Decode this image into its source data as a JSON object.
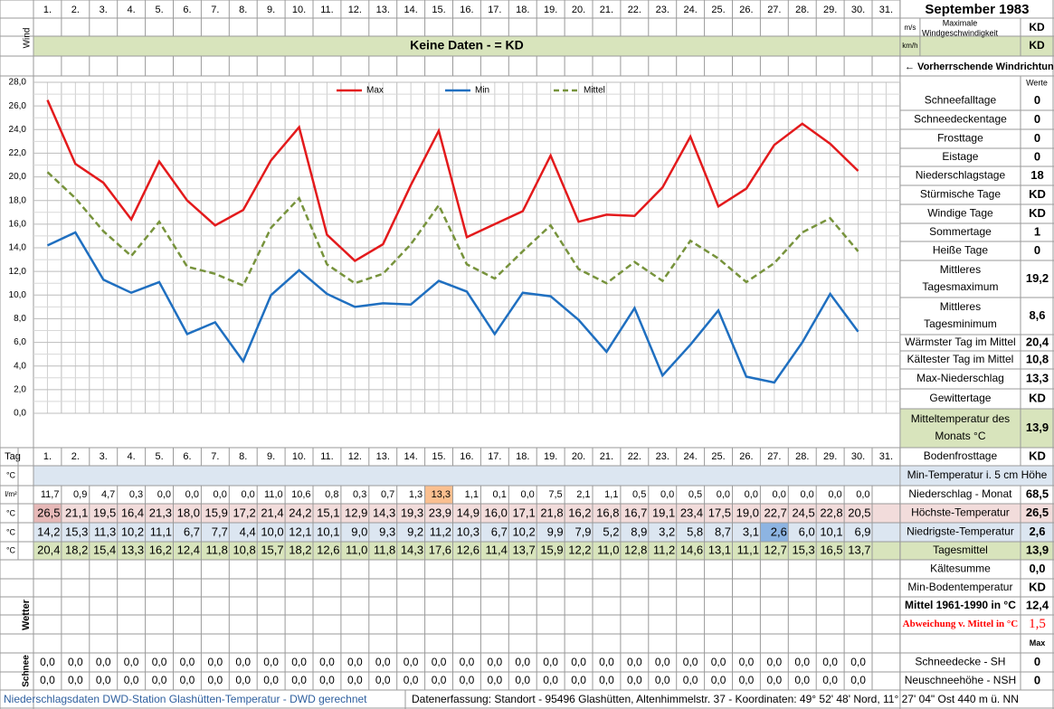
{
  "header": {
    "title": "September 1983",
    "wind_label": "Wind",
    "ms": "m/s",
    "kmh": "km/h",
    "wind_max_label": [
      "Maximale",
      "Windgeschwindigkeit"
    ],
    "wind_ms_value": "KD",
    "wind_kmh_value": "KD",
    "no_data": "Keine Daten -  = KD",
    "wind_direction": "← Vorherrschende Windrichtung"
  },
  "chart_data": {
    "type": "line",
    "categories": [
      "1.",
      "2.",
      "3.",
      "4.",
      "5.",
      "6.",
      "7.",
      "8.",
      "9.",
      "10.",
      "11.",
      "12.",
      "13.",
      "14.",
      "15.",
      "16.",
      "17.",
      "18.",
      "19.",
      "20.",
      "21.",
      "22.",
      "23.",
      "24.",
      "25.",
      "26.",
      "27.",
      "28.",
      "29.",
      "30.",
      "31."
    ],
    "series": [
      {
        "name": "Max",
        "color": "#e31a1c",
        "dashed": false,
        "values": [
          26.5,
          21.1,
          19.5,
          16.4,
          21.3,
          18.0,
          15.9,
          17.2,
          21.4,
          24.2,
          15.1,
          12.9,
          14.3,
          19.3,
          23.9,
          14.9,
          16.0,
          17.1,
          21.8,
          16.2,
          16.8,
          16.7,
          19.1,
          23.4,
          17.5,
          19.0,
          22.7,
          24.5,
          22.8,
          20.5,
          null
        ],
        "value_labels": [
          "26,5",
          "21,1",
          "19,5",
          "16,4",
          "21,3",
          "18,0",
          "15,9",
          "17,2",
          "21,4",
          "24,2",
          "15,1",
          "12,9",
          "14,3",
          "19,3",
          "23,9",
          "14,9",
          "16,0",
          "17,1",
          "21,8",
          "16,2",
          "16,8",
          "16,7",
          "19,1",
          "23,4",
          "17,5",
          "19,0",
          "22,7",
          "24,5",
          "22,8",
          "20,5",
          null
        ]
      },
      {
        "name": "Min",
        "color": "#1f6fc0",
        "dashed": false,
        "values": [
          14.2,
          15.3,
          11.3,
          10.2,
          11.1,
          6.7,
          7.7,
          4.4,
          10.0,
          12.1,
          10.1,
          9.0,
          9.3,
          9.2,
          11.2,
          10.3,
          6.7,
          10.2,
          9.9,
          7.9,
          5.2,
          8.9,
          3.2,
          5.8,
          8.7,
          3.1,
          2.6,
          6.0,
          10.1,
          6.9,
          null
        ],
        "value_labels": [
          "14,2",
          "15,3",
          "11,3",
          "10,2",
          "11,1",
          "6,7",
          "7,7",
          "4,4",
          "10,0",
          "12,1",
          "10,1",
          "9,0",
          "9,3",
          "9,2",
          "11,2",
          "10,3",
          "6,7",
          "10,2",
          "9,9",
          "7,9",
          "5,2",
          "8,9",
          "3,2",
          "5,8",
          "8,7",
          "3,1",
          "2,6",
          "6,0",
          "10,1",
          "6,9",
          null
        ]
      },
      {
        "name": "Mittel",
        "color": "#77933c",
        "dashed": true,
        "values": [
          20.4,
          18.2,
          15.4,
          13.3,
          16.2,
          12.4,
          11.8,
          10.8,
          15.7,
          18.2,
          12.6,
          11.0,
          11.8,
          14.3,
          17.6,
          12.6,
          11.4,
          13.7,
          15.9,
          12.2,
          11.0,
          12.8,
          11.2,
          14.6,
          13.1,
          11.1,
          12.7,
          15.3,
          16.5,
          13.7,
          null
        ],
        "value_labels": [
          "20,4",
          "18,2",
          "15,4",
          "13,3",
          "16,2",
          "12,4",
          "11,8",
          "10,8",
          "15,7",
          "18,2",
          "12,6",
          "11,0",
          "11,8",
          "14,3",
          "17,6",
          "12,6",
          "11,4",
          "13,7",
          "15,9",
          "12,2",
          "11,0",
          "12,8",
          "11,2",
          "14,6",
          "13,1",
          "11,1",
          "12,7",
          "15,3",
          "16,5",
          "13,7",
          null
        ]
      }
    ],
    "ylim": [
      0,
      28
    ],
    "yticks": [
      {
        "value": 0,
        "label": "0,0"
      },
      {
        "value": 2,
        "label": "2,0"
      },
      {
        "value": 4,
        "label": "4,0"
      },
      {
        "value": 6,
        "label": "6,0"
      },
      {
        "value": 8,
        "label": "8,0"
      },
      {
        "value": 10,
        "label": "10,0"
      },
      {
        "value": 12,
        "label": "12,0"
      },
      {
        "value": 14,
        "label": "14,0"
      },
      {
        "value": 16,
        "label": "16,0"
      },
      {
        "value": 18,
        "label": "18,0"
      },
      {
        "value": 20,
        "label": "20,0"
      },
      {
        "value": 22,
        "label": "22,0"
      },
      {
        "value": 24,
        "label": "24,0"
      },
      {
        "value": 26,
        "label": "26,0"
      },
      {
        "value": 28,
        "label": "28,0"
      }
    ],
    "grid": true,
    "legend": "top"
  },
  "table": {
    "day_label": "Tag",
    "unit_c": "°C",
    "unit_precip": "l/m²",
    "precipitation": [
      "11,7",
      "0,9",
      "4,7",
      "0,3",
      "0,0",
      "0,0",
      "0,0",
      "0,0",
      "11,0",
      "10,6",
      "0,8",
      "0,3",
      "0,7",
      "1,3",
      "13,3",
      "1,1",
      "0,1",
      "0,0",
      "7,5",
      "2,1",
      "1,1",
      "0,5",
      "0,0",
      "0,5",
      "0,0",
      "0,0",
      "0,0",
      "0,0",
      "0,0",
      "0,0",
      null
    ],
    "weather_label": "Wetter",
    "snow_label": "Schnee",
    "snow_depth": [
      "0,0",
      "0,0",
      "0,0",
      "0,0",
      "0,0",
      "0,0",
      "0,0",
      "0,0",
      "0,0",
      "0,0",
      "0,0",
      "0,0",
      "0,0",
      "0,0",
      "0,0",
      "0,0",
      "0,0",
      "0,0",
      "0,0",
      "0,0",
      "0,0",
      "0,0",
      "0,0",
      "0,0",
      "0,0",
      "0,0",
      "0,0",
      "0,0",
      "0,0",
      "0,0",
      null
    ],
    "new_snow": [
      "0,0",
      "0,0",
      "0,0",
      "0,0",
      "0,0",
      "0,0",
      "0,0",
      "0,0",
      "0,0",
      "0,0",
      "0,0",
      "0,0",
      "0,0",
      "0,0",
      "0,0",
      "0,0",
      "0,0",
      "0,0",
      "0,0",
      "0,0",
      "0,0",
      "0,0",
      "0,0",
      "0,0",
      "0,0",
      "0,0",
      "0,0",
      "0,0",
      "0,0",
      "0,0",
      null
    ]
  },
  "right_panel": {
    "values_header": "Werte",
    "rows": [
      {
        "lines": [
          "Schneefalltage"
        ],
        "value": "0"
      },
      {
        "lines": [
          "Schneedeckentage"
        ],
        "value": "0"
      },
      {
        "lines": [
          "Frosttage"
        ],
        "value": "0"
      },
      {
        "lines": [
          "Eistage"
        ],
        "value": "0"
      },
      {
        "lines": [
          "Niederschlagstage"
        ],
        "value": "18"
      },
      {
        "lines": [
          "Stürmische Tage"
        ],
        "value": "KD"
      },
      {
        "lines": [
          "Windige Tage"
        ],
        "value": "KD"
      },
      {
        "lines": [
          "Sommertage"
        ],
        "value": "1"
      },
      {
        "lines": [
          "Heiße Tage"
        ],
        "value": "0"
      },
      {
        "lines": [
          "Mittleres",
          "Tagesmaximum"
        ],
        "value": "19,2"
      },
      {
        "lines": [
          "Mittleres",
          "Tagesminimum"
        ],
        "value": "8,6"
      },
      {
        "lines": [
          "Wärmster Tag im Mittel"
        ],
        "value": "20,4"
      },
      {
        "lines": [
          "Kältester Tag im Mittel"
        ],
        "value": "10,8"
      },
      {
        "lines": [
          "Max-Niederschlag"
        ],
        "value": "13,3"
      },
      {
        "lines": [
          "Gewittertage"
        ],
        "value": "KD"
      },
      {
        "lines": [
          "Mitteltemperatur des",
          "Monats °C"
        ],
        "value": "13,9"
      },
      {
        "lines": [
          "Bodenfrosttage"
        ],
        "value": "KD"
      },
      {
        "lines": [
          "Min-Temperatur i. 5 cm Höhe"
        ]
      },
      {
        "lines": [
          "Niederschlag - Monat"
        ],
        "value": "68,5"
      },
      {
        "lines": [
          "Höchste-Temperatur"
        ],
        "value": "26,5"
      },
      {
        "lines": [
          "Niedrigste-Temperatur"
        ],
        "value": "2,6"
      },
      {
        "lines": [
          "Tagesmittel"
        ],
        "value": "13,9"
      },
      {
        "lines": [
          "Kältesumme"
        ],
        "value": "0,0"
      },
      {
        "lines": [
          "Min-Bodentemperatur"
        ],
        "value": "KD"
      },
      {
        "lines": [
          "Mittel 1961-1990 in °C"
        ],
        "value": "12,4"
      },
      {
        "lines": [
          "Abweichung v. Mittel in °C"
        ],
        "value": "1,5"
      },
      {
        "value": "Max"
      },
      {
        "lines": [
          "Schneedecke -   SH"
        ],
        "value": "0"
      },
      {
        "lines": [
          "Neuschneehöhe - NSH"
        ],
        "value": "0"
      }
    ]
  },
  "footer": {
    "left": "Niederschlagsdaten DWD-Station Glashütten-Temperatur -  DWD gerechnet",
    "right": "Datenerfassung: Standort -  95496  Glashütten, Altenhimmelstr. 37 - Koordinaten:  49° 52' 48' Nord,   11° 27' 04\" Ost   440 m ü. NN"
  }
}
